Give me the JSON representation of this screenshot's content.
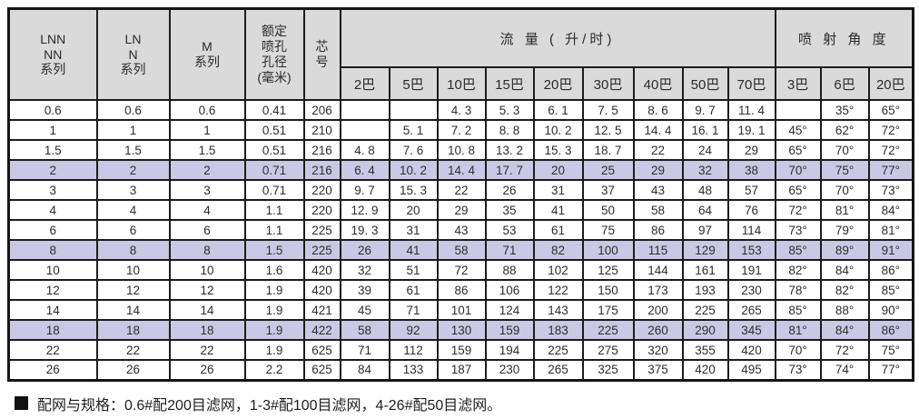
{
  "table": {
    "headers": {
      "fixed": [
        "LNN\nNN\n系列",
        "LN\nN\n系列",
        "M\n系列",
        "额定\n喷孔\n孔径\n(毫米)",
        "芯\n号"
      ],
      "flow": {
        "label": "流 量 ( 升/时)",
        "subs": [
          "2巴",
          "5巴",
          "10巴",
          "15巴",
          "20巴",
          "30巴",
          "40巴",
          "50巴",
          "70巴"
        ]
      },
      "angle": {
        "label": "喷 射 角 度",
        "subs": [
          "3巴",
          "6巴",
          "20巴"
        ]
      }
    },
    "rows": [
      {
        "highlight": false,
        "cells": [
          "0.6",
          "0.6",
          "0.6",
          "0.41",
          "206",
          "",
          "",
          "4. 3",
          "5. 3",
          "6. 1",
          "7. 5",
          "8. 6",
          "9. 7",
          "11. 4",
          "",
          "35°",
          "65°"
        ]
      },
      {
        "highlight": false,
        "cells": [
          "1",
          "1",
          "1",
          "0.51",
          "210",
          "",
          "5. 1",
          "7. 2",
          "8. 8",
          "10. 2",
          "12. 5",
          "14. 4",
          "16. 1",
          "19. 1",
          "45°",
          "62°",
          "72°"
        ]
      },
      {
        "highlight": false,
        "cells": [
          "1.5",
          "1.5",
          "1.5",
          "0.51",
          "216",
          "4. 8",
          "7. 6",
          "10. 8",
          "13. 2",
          "15. 3",
          "18. 7",
          "22",
          "24",
          "29",
          "65°",
          "70°",
          "72°"
        ]
      },
      {
        "highlight": true,
        "cells": [
          "2",
          "2",
          "2",
          "0.71",
          "216",
          "6. 4",
          "10. 2",
          "14. 4",
          "17. 7",
          "20",
          "25",
          "29",
          "32",
          "38",
          "70°",
          "75°",
          "77°"
        ]
      },
      {
        "highlight": false,
        "cells": [
          "3",
          "3",
          "3",
          "0.71",
          "220",
          "9. 7",
          "15. 3",
          "22",
          "26",
          "31",
          "37",
          "43",
          "48",
          "57",
          "65°",
          "70°",
          "73°"
        ]
      },
      {
        "highlight": false,
        "cells": [
          "4",
          "4",
          "4",
          "1.1",
          "220",
          "12. 9",
          "20",
          "29",
          "35",
          "41",
          "50",
          "58",
          "64",
          "76",
          "72°",
          "81°",
          "84°"
        ]
      },
      {
        "highlight": false,
        "cells": [
          "6",
          "6",
          "6",
          "1.1",
          "225",
          "19. 3",
          "31",
          "43",
          "53",
          "61",
          "75",
          "86",
          "97",
          "114",
          "73°",
          "79°",
          "81°"
        ]
      },
      {
        "highlight": true,
        "cells": [
          "8",
          "8",
          "8",
          "1.5",
          "225",
          "26",
          "41",
          "58",
          "71",
          "82",
          "100",
          "115",
          "129",
          "153",
          "85°",
          "89°",
          "91°"
        ]
      },
      {
        "highlight": false,
        "cells": [
          "10",
          "10",
          "10",
          "1.6",
          "420",
          "32",
          "51",
          "72",
          "88",
          "102",
          "125",
          "144",
          "161",
          "191",
          "82°",
          "84°",
          "86°"
        ]
      },
      {
        "highlight": false,
        "cells": [
          "12",
          "12",
          "12",
          "1.9",
          "420",
          "39",
          "61",
          "86",
          "106",
          "122",
          "150",
          "173",
          "193",
          "230",
          "78°",
          "82°",
          "85°"
        ]
      },
      {
        "highlight": false,
        "cells": [
          "14",
          "14",
          "14",
          "1.9",
          "421",
          "45",
          "71",
          "101",
          "124",
          "143",
          "175",
          "200",
          "225",
          "265",
          "85°",
          "88°",
          "90°"
        ]
      },
      {
        "highlight": true,
        "cells": [
          "18",
          "18",
          "18",
          "1.9",
          "422",
          "58",
          "92",
          "130",
          "159",
          "183",
          "225",
          "260",
          "290",
          "345",
          "81°",
          "84°",
          "86°"
        ]
      },
      {
        "highlight": false,
        "cells": [
          "22",
          "22",
          "22",
          "1.9",
          "625",
          "71",
          "112",
          "159",
          "194",
          "225",
          "275",
          "320",
          "355",
          "420",
          "70°",
          "72°",
          "75°"
        ]
      },
      {
        "highlight": false,
        "cells": [
          "26",
          "26",
          "26",
          "2.2",
          "625",
          "84",
          "133",
          "187",
          "230",
          "265",
          "325",
          "375",
          "420",
          "495",
          "73°",
          "74°",
          "77°"
        ]
      }
    ]
  },
  "note": {
    "text": "配网与规格：0.6#配200目滤网，1-3#配100目滤网，4-26#配50目滤网。"
  },
  "colors": {
    "header_bg": "#dadada",
    "highlight_bg": "#cac8e4",
    "border": "#1c1c1c"
  }
}
